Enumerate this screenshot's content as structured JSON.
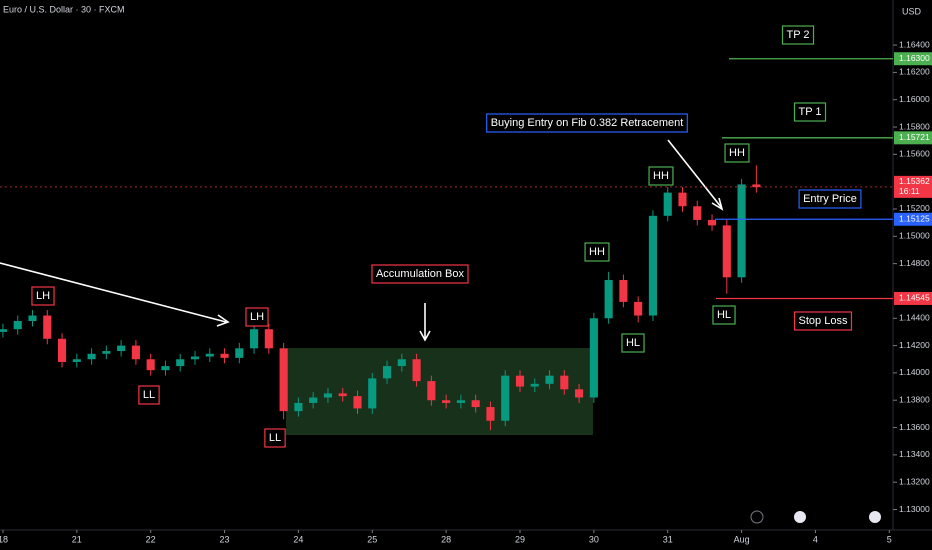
{
  "chart_data": {
    "type": "candlestick",
    "title": "Euro / U.S. Dollar · 30 · FXCM",
    "y_label": "USD",
    "up_color": "#089981",
    "down_color": "#f23645",
    "x": [
      0,
      0.2,
      0.4,
      0.6,
      0.8,
      1,
      1.2,
      1.4,
      1.6,
      1.8,
      2,
      2.2,
      2.4,
      2.6,
      2.8,
      3,
      3.2,
      3.4,
      3.6,
      3.8,
      4,
      4.2,
      4.4,
      4.6,
      4.8,
      5,
      5.2,
      5.4,
      5.6,
      5.8,
      6,
      6.2,
      6.4,
      6.6,
      6.8,
      7,
      7.2,
      7.4,
      7.6,
      7.8,
      8,
      8.2,
      8.4,
      8.6,
      8.8,
      9,
      9.2,
      9.4,
      9.6,
      9.8,
      10,
      10.2
    ],
    "open": [
      1.143,
      1.1432,
      1.1438,
      1.1442,
      1.1425,
      1.1408,
      1.141,
      1.1414,
      1.1416,
      1.142,
      1.141,
      1.1402,
      1.1405,
      1.141,
      1.1412,
      1.1414,
      1.1411,
      1.1418,
      1.1432,
      1.1418,
      1.1372,
      1.1378,
      1.1382,
      1.1385,
      1.1383,
      1.1374,
      1.1396,
      1.1405,
      1.141,
      1.1394,
      1.138,
      1.1378,
      1.138,
      1.1375,
      1.1365,
      1.1398,
      1.139,
      1.1392,
      1.1398,
      1.1388,
      1.1382,
      1.144,
      1.1468,
      1.1452,
      1.1442,
      1.1515,
      1.1532,
      1.1522,
      1.1512,
      1.1508,
      1.147,
      1.1538
    ],
    "high": [
      1.1436,
      1.1442,
      1.1446,
      1.1446,
      1.1429,
      1.1414,
      1.1418,
      1.142,
      1.1424,
      1.1424,
      1.1414,
      1.1409,
      1.1414,
      1.1416,
      1.1418,
      1.1418,
      1.1422,
      1.1436,
      1.1436,
      1.1422,
      1.1382,
      1.1386,
      1.1389,
      1.1389,
      1.1387,
      1.14,
      1.1409,
      1.1414,
      1.1414,
      1.1398,
      1.1384,
      1.1384,
      1.1384,
      1.1379,
      1.1402,
      1.1402,
      1.1396,
      1.1402,
      1.1402,
      1.1392,
      1.1444,
      1.1474,
      1.1472,
      1.1456,
      1.1519,
      1.1536,
      1.1536,
      1.1526,
      1.1516,
      1.1512,
      1.1542,
      1.1552
    ],
    "low": [
      1.1426,
      1.1428,
      1.1434,
      1.1421,
      1.1404,
      1.1404,
      1.1406,
      1.141,
      1.1412,
      1.1406,
      1.1398,
      1.1398,
      1.1401,
      1.1406,
      1.1408,
      1.1407,
      1.1407,
      1.1414,
      1.1414,
      1.1366,
      1.1368,
      1.1374,
      1.1378,
      1.1379,
      1.137,
      1.137,
      1.1392,
      1.1401,
      1.139,
      1.1376,
      1.1374,
      1.1374,
      1.1371,
      1.1358,
      1.1361,
      1.1386,
      1.1386,
      1.1388,
      1.1384,
      1.1378,
      1.1378,
      1.1436,
      1.1448,
      1.1437,
      1.1438,
      1.1511,
      1.1518,
      1.1508,
      1.1504,
      1.1458,
      1.1466,
      1.1532
    ],
    "close": [
      1.1432,
      1.1438,
      1.1442,
      1.1425,
      1.1408,
      1.141,
      1.1414,
      1.1416,
      1.142,
      1.141,
      1.1402,
      1.1405,
      1.141,
      1.1412,
      1.1414,
      1.1411,
      1.1418,
      1.1432,
      1.1418,
      1.1372,
      1.1378,
      1.1382,
      1.1385,
      1.1383,
      1.1374,
      1.1396,
      1.1405,
      1.141,
      1.1394,
      1.138,
      1.1378,
      1.138,
      1.1375,
      1.1365,
      1.1398,
      1.139,
      1.1392,
      1.1398,
      1.1388,
      1.1382,
      1.144,
      1.1468,
      1.1452,
      1.1442,
      1.1515,
      1.1532,
      1.1522,
      1.1512,
      1.1508,
      1.147,
      1.1538,
      1.1536
    ],
    "xlim": [
      -0.04,
      12.05
    ],
    "xticks": [
      {
        "value": 0,
        "label": "18"
      },
      {
        "value": 1,
        "label": "21"
      },
      {
        "value": 2,
        "label": "22"
      },
      {
        "value": 3,
        "label": "23"
      },
      {
        "value": 4,
        "label": "24"
      },
      {
        "value": 5,
        "label": "25"
      },
      {
        "value": 6,
        "label": "28"
      },
      {
        "value": 7,
        "label": "29"
      },
      {
        "value": 8,
        "label": "30"
      },
      {
        "value": 9,
        "label": "31"
      },
      {
        "value": 10,
        "label": "Aug"
      },
      {
        "value": 11,
        "label": "4"
      },
      {
        "value": 12,
        "label": "5"
      }
    ],
    "ylim": [
      1.1285,
      1.1673
    ],
    "yticks": [
      {
        "value": 1.13,
        "label": "1.13000"
      },
      {
        "value": 1.132,
        "label": "1.13200"
      },
      {
        "value": 1.134,
        "label": "1.13400"
      },
      {
        "value": 1.136,
        "label": "1.13600"
      },
      {
        "value": 1.138,
        "label": "1.13800"
      },
      {
        "value": 1.14,
        "label": "1.14000"
      },
      {
        "value": 1.142,
        "label": "1.14200"
      },
      {
        "value": 1.144,
        "label": "1.14400"
      },
      {
        "value": 1.148,
        "label": "1.14800"
      },
      {
        "value": 1.15,
        "label": "1.15000"
      },
      {
        "value": 1.152,
        "label": "1.15200"
      },
      {
        "value": 1.156,
        "label": "1.15600"
      },
      {
        "value": 1.158,
        "label": "1.15800"
      },
      {
        "value": 1.16,
        "label": "1.16000"
      },
      {
        "value": 1.162,
        "label": "1.16200"
      },
      {
        "value": 1.164,
        "label": "1.16400"
      }
    ],
    "levels": [
      {
        "name": "TP 2",
        "value": 1.163,
        "label": "1.16300",
        "color": "#4caf50"
      },
      {
        "name": "TP 1",
        "value": 1.15721,
        "label": "1.15721",
        "color": "#4caf50"
      },
      {
        "name": "Entry Price",
        "value": 1.15125,
        "label": "1.15125",
        "color": "#2962ff"
      },
      {
        "name": "Stop Loss",
        "value": 1.14545,
        "label": "1.14545",
        "color": "#f23645"
      }
    ],
    "current_price": {
      "value": 1.15362,
      "label": "1.15362",
      "countdown": "16:11",
      "color": "#f23645"
    },
    "annotations": [
      {
        "text": "LH",
        "color": "#f23645"
      },
      {
        "text": "LL",
        "color": "#f23645"
      },
      {
        "text": "LH",
        "color": "#f23645"
      },
      {
        "text": "LL",
        "color": "#f23645"
      },
      {
        "text": "Accumulation Box",
        "color": "#f23645"
      },
      {
        "text": "HH",
        "color": "#4caf50"
      },
      {
        "text": "HL",
        "color": "#4caf50"
      },
      {
        "text": "HH",
        "color": "#4caf50"
      },
      {
        "text": "Buying Entry on Fib 0.382 Retracement",
        "color": "#2962ff"
      },
      {
        "text": "HH",
        "color": "#4caf50"
      },
      {
        "text": "HL",
        "color": "#4caf50"
      }
    ]
  }
}
